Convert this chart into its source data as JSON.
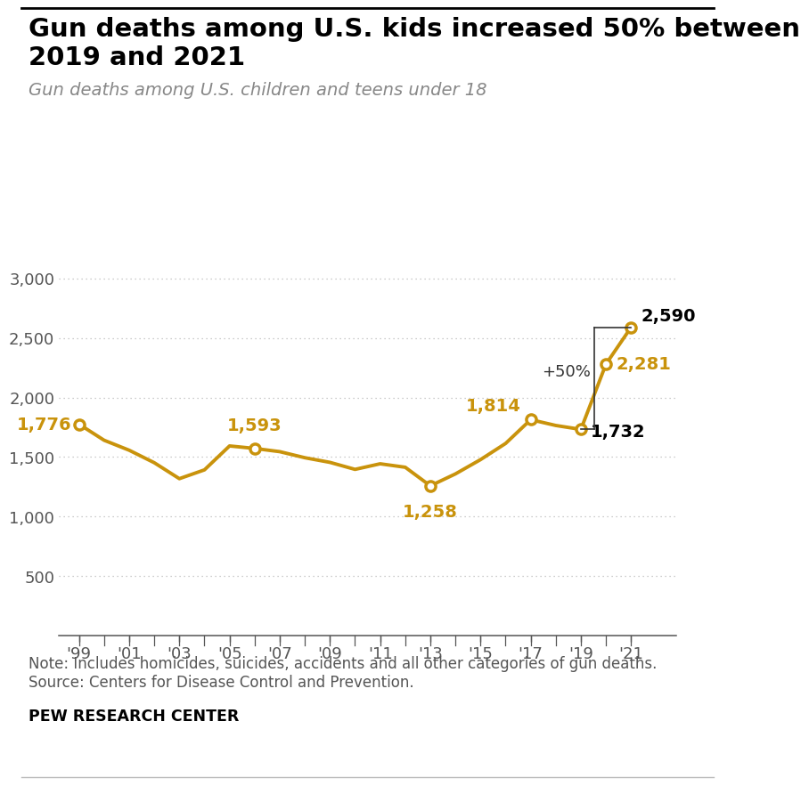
{
  "title_line1": "Gun deaths among U.S. kids increased 50% between",
  "title_line2": "2019 and 2021",
  "subtitle": "Gun deaths among U.S. children and teens under 18",
  "note_line1": "Note: Includes homicides, suicides, accidents and all other categories of gun deaths.",
  "note_line2": "Source: Centers for Disease Control and Prevention.",
  "footer": "PEW RESEARCH CENTER",
  "years": [
    1999,
    2000,
    2001,
    2002,
    2003,
    2004,
    2005,
    2006,
    2007,
    2008,
    2009,
    2010,
    2011,
    2012,
    2013,
    2014,
    2015,
    2016,
    2017,
    2018,
    2019,
    2020,
    2021
  ],
  "values": [
    1776,
    1641,
    1557,
    1452,
    1318,
    1392,
    1593,
    1572,
    1545,
    1494,
    1455,
    1396,
    1443,
    1414,
    1258,
    1358,
    1478,
    1614,
    1814,
    1765,
    1732,
    2281,
    2590
  ],
  "line_color": "#C9930C",
  "marker_fill": "#FFFFFF",
  "highlighted_years": [
    1999,
    2006,
    2013,
    2017,
    2019,
    2020,
    2021
  ],
  "yticks": [
    500,
    1000,
    1500,
    2000,
    2500,
    3000
  ],
  "xtick_labels": [
    "'99",
    "'01",
    "'03",
    "'05",
    "'07",
    "'09",
    "'11",
    "'13",
    "'15",
    "'17",
    "'19",
    "'21"
  ],
  "xtick_positions": [
    1999,
    2001,
    2003,
    2005,
    2007,
    2009,
    2011,
    2013,
    2015,
    2017,
    2019,
    2021
  ],
  "ylim": [
    0,
    3400
  ],
  "xlim": [
    1998.2,
    2022.8
  ],
  "bg_color": "#FFFFFF",
  "grid_color": "#BBBBBB",
  "axis_color": "#555555",
  "label_color_gold": "#C9930C",
  "label_color_black": "#000000",
  "subtitle_color": "#888888",
  "note_color": "#555555"
}
